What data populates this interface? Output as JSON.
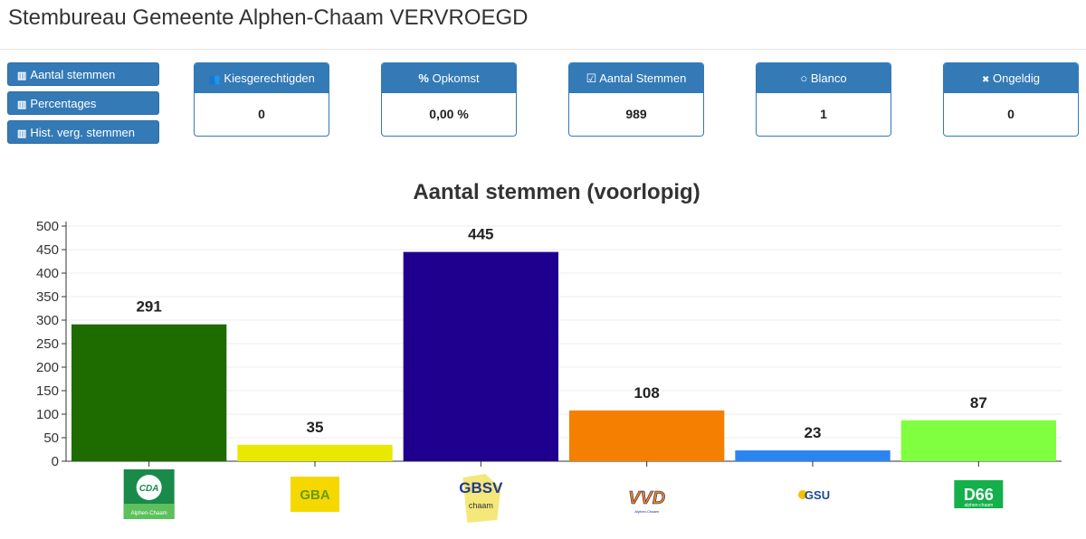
{
  "header": {
    "title": "Stembureau Gemeente Alphen-Chaam VERVROEGD"
  },
  "nav": [
    {
      "label": "Aantal stemmen",
      "icon": "bar-chart-icon"
    },
    {
      "label": "Percentages",
      "icon": "bar-chart-icon"
    },
    {
      "label": "Hist. verg. stemmen",
      "icon": "bar-chart-icon"
    }
  ],
  "cards": [
    {
      "label": "Kiesgerechtigden",
      "icon": "users-icon",
      "glyph": "👥",
      "value": "0"
    },
    {
      "label": "Opkomst",
      "icon": "percent-icon",
      "glyph": "%",
      "value": "0,00 %"
    },
    {
      "label": "Aantal Stemmen",
      "icon": "check-square-icon",
      "glyph": "☑",
      "value": "989"
    },
    {
      "label": "Blanco",
      "icon": "circle-icon",
      "glyph": "○",
      "value": "1"
    },
    {
      "label": "Ongeldig",
      "icon": "x-icon",
      "glyph": "✖",
      "value": "0"
    }
  ],
  "chart_data": {
    "type": "bar",
    "title": "Aantal stemmen (voorlopig)",
    "categories": [
      "CDA",
      "GBA",
      "GBSV",
      "VVD",
      "GSU",
      "D66"
    ],
    "values": [
      291,
      35,
      445,
      108,
      23,
      87
    ],
    "colors": [
      "#1e6b00",
      "#e8e800",
      "#1f008e",
      "#f57f00",
      "#2b85f0",
      "#80ff40"
    ],
    "ylim": [
      0,
      500
    ],
    "yticks": [
      0,
      50,
      100,
      150,
      200,
      250,
      300,
      350,
      400,
      450,
      500
    ],
    "logos": [
      {
        "text": "CDA",
        "sub": "Alphen-Chaam",
        "bg": "#1a8a4a"
      },
      {
        "text": "GBA",
        "bg": "#f5d800"
      },
      {
        "text": "GBSV",
        "sub": "chaam",
        "bg": "#f4e87a"
      },
      {
        "text": "VVD",
        "sub": "Alphen-Chaam",
        "bg": "#ffffff"
      },
      {
        "text": "GSU",
        "bg": "#ffffff"
      },
      {
        "text": "D66",
        "sub": "alphen-chaam",
        "bg": "#14b04a"
      }
    ]
  }
}
